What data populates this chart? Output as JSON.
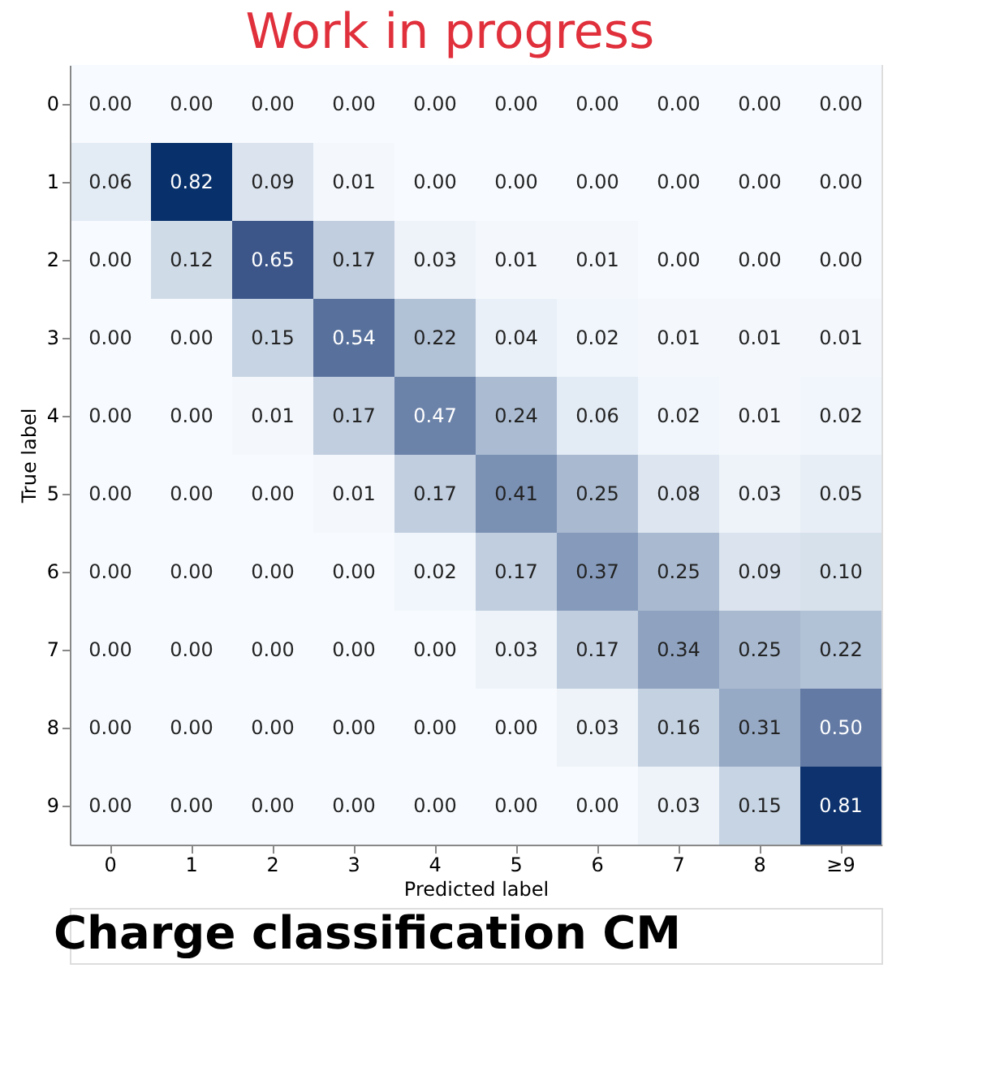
{
  "chart_data": {
    "type": "heatmap",
    "title": "Work in progress",
    "xlabel": "Predicted label",
    "ylabel": "True label",
    "categories": [
      "0",
      "1",
      "2",
      "3",
      "4",
      "5",
      "6",
      "7",
      "8",
      "≥9"
    ],
    "y_categories": [
      "0",
      "1",
      "2",
      "3",
      "4",
      "5",
      "6",
      "7",
      "8",
      "9"
    ],
    "cells": [
      [
        0.0,
        0.0,
        0.0,
        0.0,
        0.0,
        0.0,
        0.0,
        0.0,
        0.0,
        0.0
      ],
      [
        0.06,
        0.82,
        0.09,
        0.01,
        0.0,
        0.0,
        0.0,
        0.0,
        0.0,
        0.0
      ],
      [
        0.0,
        0.12,
        0.65,
        0.17,
        0.03,
        0.01,
        0.01,
        0.0,
        0.0,
        0.0
      ],
      [
        0.0,
        0.0,
        0.15,
        0.54,
        0.22,
        0.04,
        0.02,
        0.01,
        0.01,
        0.01
      ],
      [
        0.0,
        0.0,
        0.01,
        0.17,
        0.47,
        0.24,
        0.06,
        0.02,
        0.01,
        0.02
      ],
      [
        0.0,
        0.0,
        0.0,
        0.01,
        0.17,
        0.41,
        0.25,
        0.08,
        0.03,
        0.05
      ],
      [
        0.0,
        0.0,
        0.0,
        0.0,
        0.02,
        0.17,
        0.37,
        0.25,
        0.09,
        0.1
      ],
      [
        0.0,
        0.0,
        0.0,
        0.0,
        0.0,
        0.03,
        0.17,
        0.34,
        0.25,
        0.22
      ],
      [
        0.0,
        0.0,
        0.0,
        0.0,
        0.0,
        0.0,
        0.03,
        0.16,
        0.31,
        0.5
      ],
      [
        0.0,
        0.0,
        0.0,
        0.0,
        0.0,
        0.0,
        0.0,
        0.03,
        0.15,
        0.81
      ]
    ],
    "cell_labels": [
      [
        "0.00",
        "0.00",
        "0.00",
        "0.00",
        "0.00",
        "0.00",
        "0.00",
        "0.00",
        "0.00",
        "0.00"
      ],
      [
        "0.06",
        "0.82",
        "0.09",
        "0.01",
        "0.00",
        "0.00",
        "0.00",
        "0.00",
        "0.00",
        "0.00"
      ],
      [
        "0.00",
        "0.12",
        "0.65",
        "0.17",
        "0.03",
        "0.01",
        "0.01",
        "0.00",
        "0.00",
        "0.00"
      ],
      [
        "0.00",
        "0.00",
        "0.15",
        "0.54",
        "0.22",
        "0.04",
        "0.02",
        "0.01",
        "0.01",
        "0.01"
      ],
      [
        "0.00",
        "0.00",
        "0.01",
        "0.17",
        "0.47",
        "0.24",
        "0.06",
        "0.02",
        "0.01",
        "0.02"
      ],
      [
        "0.00",
        "0.00",
        "0.00",
        "0.01",
        "0.17",
        "0.41",
        "0.25",
        "0.08",
        "0.03",
        "0.05"
      ],
      [
        "0.00",
        "0.00",
        "0.00",
        "0.00",
        "0.02",
        "0.17",
        "0.37",
        "0.25",
        "0.09",
        "0.10"
      ],
      [
        "0.00",
        "0.00",
        "0.00",
        "0.00",
        "0.00",
        "0.03",
        "0.17",
        "0.34",
        "0.25",
        "0.22"
      ],
      [
        "0.00",
        "0.00",
        "0.00",
        "0.00",
        "0.00",
        "0.00",
        "0.03",
        "0.16",
        "0.31",
        "0.50"
      ],
      [
        "0.00",
        "0.00",
        "0.00",
        "0.00",
        "0.00",
        "0.00",
        "0.00",
        "0.03",
        "0.15",
        "0.81"
      ]
    ],
    "annotations": [
      "Charge classification CM"
    ]
  }
}
